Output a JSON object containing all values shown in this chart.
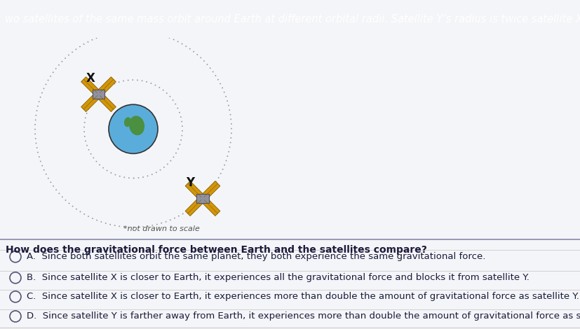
{
  "bg_color": "#e8eaf0",
  "header_bg": "#1a2a6c",
  "header_text_color": "#ffffff",
  "header_text": "wo satellites of the same mass orbit around Earth at different orbital radii. Satellite Y’s radius is twice satellite X’s radius.",
  "header_fontsize": 10.5,
  "question_text": "How does the gravitational force between Earth and the satellites compare?",
  "question_fontsize": 10,
  "options": [
    "A.  Since both satellites orbit the same planet, they both experience the same gravitational force.",
    "B.  Since satellite X is closer to Earth, it experiences all the gravitational force and blocks it from satellite Y.",
    "C.  Since satellite X is closer to Earth, it experiences more than double the amount of gravitational force as satellite Y.",
    "D.  Since satellite Y is farther away from Earth, it experiences more than double the amount of gravitational force as satellite X."
  ],
  "option_fontsize": 9.5,
  "orbit_color": "#999999",
  "diagram_bg": "#f0f0f0",
  "note_text": "*not drawn to scale",
  "note_fontsize": 8,
  "line_color": "#bbbbbb",
  "text_color": "#1a1a3a",
  "circle_color": "#555577",
  "white_bg": "#f4f5f8"
}
